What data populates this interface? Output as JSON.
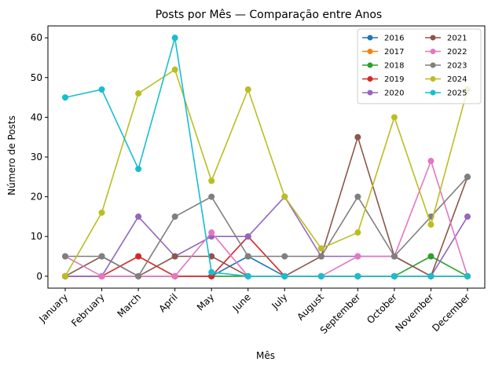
{
  "chart_data": {
    "type": "line",
    "title": "Posts por Mês — Comparação entre Anos",
    "xlabel": "Mês",
    "ylabel": "Número de Posts",
    "categories": [
      "January",
      "February",
      "March",
      "April",
      "May",
      "June",
      "July",
      "August",
      "September",
      "October",
      "November",
      "December"
    ],
    "ylim": [
      -3,
      63
    ],
    "yticks": [
      0,
      10,
      20,
      30,
      40,
      50,
      60
    ],
    "grid": false,
    "legend_position": "top-right",
    "legend_columns": 2,
    "series": [
      {
        "name": "2016",
        "color": "#1f77b4",
        "values": [
          0,
          0,
          0,
          0,
          0,
          5,
          0,
          0,
          0,
          0,
          0,
          0
        ]
      },
      {
        "name": "2017",
        "color": "#ff7f0e",
        "values": [
          0,
          0,
          0,
          0,
          0,
          0,
          0,
          0,
          0,
          0,
          0,
          0
        ]
      },
      {
        "name": "2018",
        "color": "#2ca02c",
        "values": [
          0,
          0,
          0,
          0,
          0,
          0,
          0,
          0,
          0,
          0,
          5,
          0
        ]
      },
      {
        "name": "2019",
        "color": "#d62728",
        "values": [
          0,
          0,
          5,
          0,
          0,
          10,
          0,
          0,
          0,
          0,
          0,
          0
        ]
      },
      {
        "name": "2020",
        "color": "#9467bd",
        "values": [
          0,
          0,
          15,
          5,
          10,
          10,
          20,
          5,
          5,
          5,
          0,
          15
        ]
      },
      {
        "name": "2021",
        "color": "#8c564b",
        "values": [
          0,
          5,
          0,
          5,
          5,
          0,
          0,
          5,
          35,
          5,
          0,
          25
        ]
      },
      {
        "name": "2022",
        "color": "#e377c2",
        "values": [
          5,
          0,
          0,
          0,
          11,
          0,
          0,
          0,
          5,
          5,
          29,
          0
        ]
      },
      {
        "name": "2023",
        "color": "#7f7f7f",
        "values": [
          5,
          5,
          0,
          15,
          20,
          5,
          5,
          5,
          20,
          5,
          15,
          25
        ]
      },
      {
        "name": "2024",
        "color": "#bcbd22",
        "values": [
          0,
          16,
          46,
          52,
          24,
          47,
          20,
          7,
          11,
          40,
          13,
          47
        ]
      },
      {
        "name": "2025",
        "color": "#17becf",
        "values": [
          45,
          47,
          27,
          60,
          1,
          0,
          0,
          0,
          0,
          0,
          0,
          0
        ]
      }
    ]
  }
}
